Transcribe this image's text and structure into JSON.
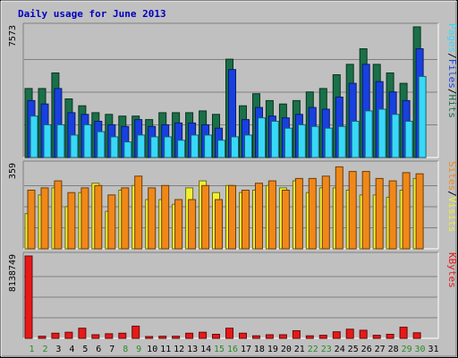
{
  "chart_data": {
    "type": "bar",
    "title": "Daily usage for June 2013",
    "categories": [
      "1",
      "2",
      "3",
      "4",
      "5",
      "6",
      "7",
      "8",
      "9",
      "10",
      "11",
      "12",
      "13",
      "14",
      "15",
      "16",
      "17",
      "18",
      "19",
      "20",
      "21",
      "22",
      "23",
      "24",
      "25",
      "26",
      "27",
      "28",
      "29",
      "30",
      "31"
    ],
    "weekend_days": [
      "1",
      "2",
      "8",
      "9",
      "15",
      "16",
      "22",
      "23",
      "29",
      "30"
    ],
    "colors": {
      "hits": "#1a7048",
      "files": "#1840e0",
      "pages": "#38d8f8",
      "visits": "#f0f030",
      "sites": "#f08818",
      "kbytes": "#e81818",
      "weekday_label": "#000000",
      "weekend_label": "#2a8a2a"
    },
    "panels": [
      {
        "name": "usage",
        "ymax_label": "7573",
        "ylim": [
          0,
          7573
        ],
        "legend": [
          "Pages",
          "/",
          "Files",
          "/",
          "Hits"
        ],
        "series": [
          {
            "name": "Hits",
            "color": "#1a7048",
            "values": [
              4000,
              4000,
              4900,
              3400,
              3000,
              2600,
              2500,
              2400,
              2400,
              2200,
              2600,
              2600,
              2600,
              2700,
              2500,
              5700,
              3000,
              3700,
              3300,
              3100,
              3300,
              3800,
              4000,
              4800,
              5400,
              6300,
              5400,
              4900,
              4300,
              7573,
              0
            ]
          },
          {
            "name": "Files",
            "color": "#1840e0",
            "values": [
              3300,
              3100,
              4000,
              2600,
              2500,
              2100,
              1900,
              1800,
              2200,
              1800,
              1900,
              2000,
              2000,
              1900,
              1700,
              5100,
              2200,
              2900,
              2400,
              2300,
              2500,
              2900,
              2800,
              3500,
              4300,
              5400,
              4400,
              3800,
              3300,
              6300,
              0
            ]
          },
          {
            "name": "Pages",
            "color": "#38d8f8",
            "values": [
              2400,
              1900,
              1900,
              1300,
              1900,
              1500,
              1200,
              900,
              1300,
              1200,
              1200,
              1000,
              1300,
              1300,
              1000,
              1200,
              1300,
              2300,
              2100,
              1700,
              1900,
              1800,
              1700,
              1800,
              2100,
              2700,
              2800,
              2500,
              2100,
              4700,
              0
            ]
          }
        ]
      },
      {
        "name": "visitors",
        "ymax_label": "359",
        "ylim": [
          0,
          359
        ],
        "legend": [
          "Sites",
          "/",
          "Visits"
        ],
        "series": [
          {
            "name": "Visits",
            "color": "#f0f030",
            "values": [
              150,
              230,
              260,
              180,
              240,
              280,
              160,
              250,
              270,
              210,
              210,
              190,
              260,
              290,
              240,
              270,
              240,
              250,
              270,
              260,
              290,
              240,
              260,
              260,
              250,
              230,
              230,
              220,
              250,
              300,
              0
            ]
          },
          {
            "name": "Sites",
            "color": "#f08818",
            "values": [
              250,
              260,
              290,
              240,
              260,
              270,
              230,
              260,
              310,
              260,
              270,
              210,
              210,
              270,
              210,
              270,
              250,
              280,
              290,
              250,
              300,
              300,
              310,
              350,
              330,
              330,
              300,
              290,
              325,
              320,
              0
            ]
          }
        ]
      },
      {
        "name": "transfer",
        "ymax_label": "8138749",
        "ylim": [
          0,
          8138749
        ],
        "legend": [
          "KBytes"
        ],
        "series": [
          {
            "name": "KBytes",
            "color": "#e81818",
            "values": [
              8138749,
              200000,
              500000,
              600000,
              1000000,
              350000,
              450000,
              500000,
              1200000,
              150000,
              200000,
              200000,
              500000,
              600000,
              400000,
              1000000,
              500000,
              250000,
              350000,
              350000,
              750000,
              250000,
              300000,
              650000,
              900000,
              800000,
              300000,
              400000,
              1100000,
              550000,
              0
            ]
          }
        ]
      }
    ]
  }
}
